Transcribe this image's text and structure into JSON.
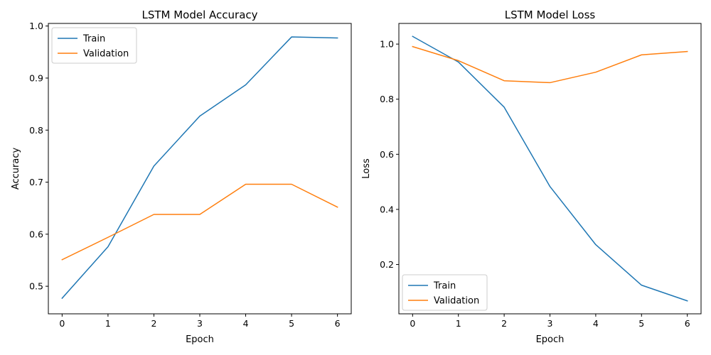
{
  "chart_data": [
    {
      "type": "line",
      "title": "LSTM Model Accuracy",
      "xlabel": "Epoch",
      "ylabel": "Accuracy",
      "xlim": [
        -0.3,
        6.3
      ],
      "ylim": [
        0.447,
        1.005
      ],
      "x_ticks": [
        0,
        1,
        2,
        3,
        4,
        5,
        6
      ],
      "y_ticks": [
        0.5,
        0.6,
        0.7,
        0.8,
        0.9,
        1.0
      ],
      "y_tick_labels": [
        "0.5",
        "0.6",
        "0.7",
        "0.8",
        "0.9",
        "1.0"
      ],
      "legend_position": "upper-left",
      "grid": false,
      "x": [
        0,
        1,
        2,
        3,
        4,
        5,
        6
      ],
      "series": [
        {
          "name": "Train",
          "color": "#1f77b4",
          "values": [
            0.477,
            0.576,
            0.731,
            0.827,
            0.887,
            0.979,
            0.977
          ]
        },
        {
          "name": "Validation",
          "color": "#ff7f0e",
          "values": [
            0.551,
            0.594,
            0.638,
            0.638,
            0.696,
            0.696,
            0.652
          ]
        }
      ]
    },
    {
      "type": "line",
      "title": "LSTM Model Loss",
      "xlabel": "Epoch",
      "ylabel": "Loss",
      "xlim": [
        -0.3,
        6.3
      ],
      "ylim": [
        0.021,
        1.075
      ],
      "x_ticks": [
        0,
        1,
        2,
        3,
        4,
        5,
        6
      ],
      "y_ticks": [
        0.2,
        0.4,
        0.6,
        0.8,
        1.0
      ],
      "y_tick_labels": [
        "0.2",
        "0.4",
        "0.6",
        "0.8",
        "1.0"
      ],
      "legend_position": "lower-left",
      "grid": false,
      "x": [
        0,
        1,
        2,
        3,
        4,
        5,
        6
      ],
      "series": [
        {
          "name": "Train",
          "color": "#1f77b4",
          "values": [
            1.028,
            0.935,
            0.771,
            0.483,
            0.272,
            0.125,
            0.068
          ]
        },
        {
          "name": "Validation",
          "color": "#ff7f0e",
          "values": [
            0.991,
            0.94,
            0.867,
            0.86,
            0.898,
            0.961,
            0.973
          ]
        }
      ]
    }
  ]
}
